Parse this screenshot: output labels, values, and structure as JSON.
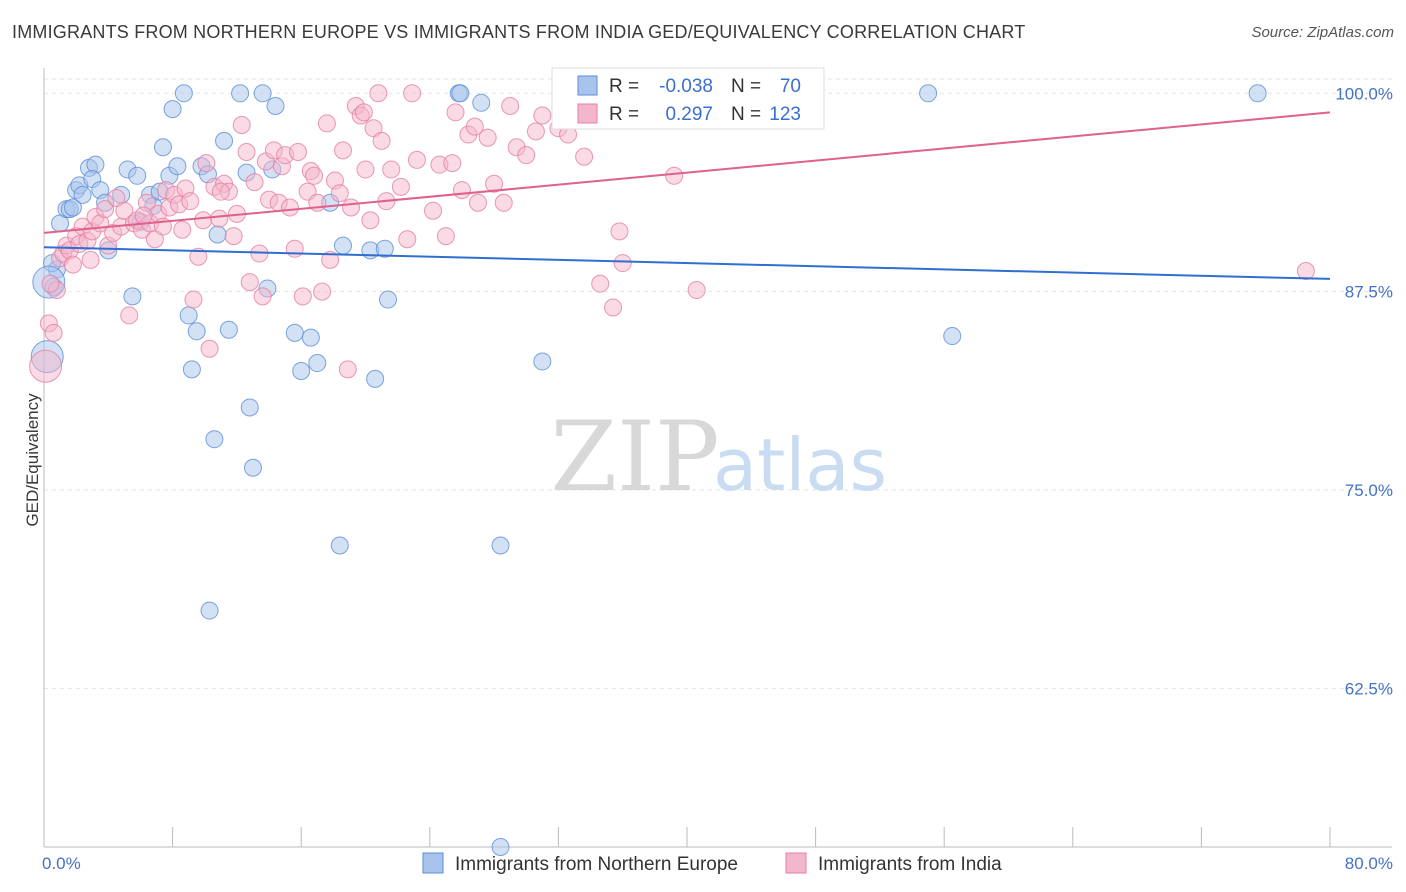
{
  "title": "IMMIGRANTS FROM NORTHERN EUROPE VS IMMIGRANTS FROM INDIA GED/EQUIVALENCY CORRELATION CHART",
  "source": "Source: ZipAtlas.com",
  "watermark": {
    "zip": "ZIP",
    "atlas": "atlas"
  },
  "chart_data": {
    "type": "scatter",
    "xlabel": "",
    "ylabel": "GED/Equivalency",
    "xlim": [
      0,
      80
    ],
    "ylim": [
      52.5,
      100.9
    ],
    "x_tick_labels": [
      "0.0%",
      "80.0%"
    ],
    "y_ticks": [
      62.5,
      75.0,
      87.5,
      100.0
    ],
    "y_tick_labels": [
      "62.5%",
      "75.0%",
      "87.5%",
      "100.0%"
    ],
    "grid": true,
    "legend": {
      "placement": "top-center",
      "rows": [
        {
          "r_label": "R =",
          "r_value": "-0.038",
          "n_label": "N =",
          "n_value": "70"
        },
        {
          "r_label": "R =",
          "r_value": "0.297",
          "n_label": "N =",
          "n_value": "123"
        }
      ]
    },
    "series": [
      {
        "name": "Immigrants from Northern Europe",
        "color": "#a8c4ec",
        "stroke": "#5b8fd6",
        "line_color": "#2f6fd0",
        "trend": {
          "x": [
            0,
            80
          ],
          "y": [
            90.3,
            88.3
          ]
        },
        "points": [
          [
            0.2,
            83.4
          ],
          [
            0.6,
            87.8
          ],
          [
            0.8,
            88.9
          ],
          [
            1.0,
            91.8
          ],
          [
            1.4,
            92.7
          ],
          [
            1.6,
            92.7
          ],
          [
            1.8,
            92.8
          ],
          [
            2.0,
            93.9
          ],
          [
            2.2,
            94.2
          ],
          [
            2.4,
            93.6
          ],
          [
            2.8,
            95.3
          ],
          [
            3.2,
            95.5
          ],
          [
            3.0,
            94.6
          ],
          [
            3.5,
            93.9
          ],
          [
            3.8,
            93.1
          ],
          [
            4.0,
            90.1
          ],
          [
            4.8,
            93.6
          ],
          [
            5.2,
            95.2
          ],
          [
            5.5,
            87.2
          ],
          [
            5.8,
            94.8
          ],
          [
            6.0,
            91.9
          ],
          [
            6.6,
            93.6
          ],
          [
            6.8,
            92.9
          ],
          [
            7.2,
            93.8
          ],
          [
            7.4,
            96.6
          ],
          [
            7.8,
            94.8
          ],
          [
            8.0,
            99.0
          ],
          [
            8.3,
            95.4
          ],
          [
            8.7,
            100.0
          ],
          [
            9.0,
            86.0
          ],
          [
            9.2,
            82.6
          ],
          [
            9.5,
            85.0
          ],
          [
            9.8,
            95.4
          ],
          [
            10.2,
            94.9
          ],
          [
            10.3,
            67.4
          ],
          [
            10.6,
            78.2
          ],
          [
            10.8,
            91.1
          ],
          [
            11.2,
            97.0
          ],
          [
            11.5,
            85.1
          ],
          [
            12.2,
            100.0
          ],
          [
            12.6,
            95.0
          ],
          [
            12.8,
            80.2
          ],
          [
            13.0,
            76.4
          ],
          [
            13.6,
            100.0
          ],
          [
            13.9,
            87.7
          ],
          [
            14.2,
            95.2
          ],
          [
            14.4,
            99.2
          ],
          [
            15.6,
            84.9
          ],
          [
            16.0,
            82.5
          ],
          [
            16.6,
            84.6
          ],
          [
            17.0,
            83.0
          ],
          [
            17.8,
            93.1
          ],
          [
            18.4,
            71.5
          ],
          [
            18.6,
            90.4
          ],
          [
            20.3,
            90.1
          ],
          [
            20.6,
            82.0
          ],
          [
            21.2,
            90.2
          ],
          [
            21.4,
            87.0
          ],
          [
            25.8,
            100.0
          ],
          [
            25.9,
            100.0
          ],
          [
            27.2,
            99.4
          ],
          [
            28.4,
            71.5
          ],
          [
            28.4,
            52.5
          ],
          [
            31.0,
            83.1
          ],
          [
            33.0,
            100.0
          ],
          [
            55.0,
            100.0
          ],
          [
            56.5,
            84.7
          ],
          [
            75.5,
            100.0
          ],
          [
            0.5,
            89.3
          ],
          [
            0.3,
            88.1
          ]
        ]
      },
      {
        "name": "Immigrants from India",
        "color": "#f4b6cc",
        "stroke": "#e57fa3",
        "line_color": "#e0608e",
        "trend": {
          "x": [
            0,
            80
          ],
          "y": [
            91.2,
            98.8
          ]
        },
        "points": [
          [
            0.1,
            82.8
          ],
          [
            0.3,
            85.5
          ],
          [
            0.6,
            84.9
          ],
          [
            0.8,
            87.6
          ],
          [
            1.0,
            89.6
          ],
          [
            1.2,
            89.9
          ],
          [
            1.4,
            90.4
          ],
          [
            1.6,
            90.1
          ],
          [
            1.8,
            89.2
          ],
          [
            2.0,
            91.0
          ],
          [
            2.2,
            90.5
          ],
          [
            2.4,
            91.6
          ],
          [
            2.7,
            90.7
          ],
          [
            3.0,
            91.3
          ],
          [
            3.2,
            92.2
          ],
          [
            3.5,
            91.8
          ],
          [
            3.8,
            92.7
          ],
          [
            4.0,
            90.4
          ],
          [
            4.3,
            91.2
          ],
          [
            4.5,
            93.4
          ],
          [
            4.8,
            91.6
          ],
          [
            5.0,
            92.6
          ],
          [
            5.3,
            86.0
          ],
          [
            5.6,
            91.8
          ],
          [
            5.8,
            92.0
          ],
          [
            6.1,
            91.4
          ],
          [
            6.4,
            93.1
          ],
          [
            6.6,
            91.8
          ],
          [
            6.9,
            90.8
          ],
          [
            7.1,
            92.4
          ],
          [
            7.4,
            91.6
          ],
          [
            7.6,
            93.9
          ],
          [
            7.8,
            92.8
          ],
          [
            8.1,
            93.6
          ],
          [
            8.4,
            93.0
          ],
          [
            8.6,
            91.4
          ],
          [
            8.8,
            94.0
          ],
          [
            9.1,
            93.2
          ],
          [
            9.3,
            87.0
          ],
          [
            9.6,
            89.7
          ],
          [
            9.9,
            92.0
          ],
          [
            10.1,
            95.6
          ],
          [
            10.3,
            83.9
          ],
          [
            10.6,
            94.1
          ],
          [
            10.9,
            92.1
          ],
          [
            11.2,
            94.3
          ],
          [
            11.5,
            93.8
          ],
          [
            11.8,
            91.0
          ],
          [
            12.0,
            92.4
          ],
          [
            12.3,
            98.0
          ],
          [
            12.6,
            96.3
          ],
          [
            12.8,
            88.1
          ],
          [
            13.1,
            94.4
          ],
          [
            13.4,
            89.9
          ],
          [
            13.6,
            87.2
          ],
          [
            13.8,
            95.7
          ],
          [
            14.0,
            93.3
          ],
          [
            14.3,
            96.4
          ],
          [
            14.6,
            93.1
          ],
          [
            14.8,
            95.4
          ],
          [
            15.0,
            96.1
          ],
          [
            15.3,
            92.8
          ],
          [
            15.6,
            90.2
          ],
          [
            15.8,
            96.3
          ],
          [
            16.1,
            87.2
          ],
          [
            16.4,
            93.8
          ],
          [
            16.6,
            95.1
          ],
          [
            16.8,
            94.8
          ],
          [
            17.0,
            93.1
          ],
          [
            17.3,
            87.5
          ],
          [
            17.6,
            98.1
          ],
          [
            17.8,
            89.5
          ],
          [
            18.1,
            94.5
          ],
          [
            18.4,
            93.7
          ],
          [
            18.6,
            96.4
          ],
          [
            18.9,
            82.6
          ],
          [
            19.1,
            92.8
          ],
          [
            19.4,
            99.2
          ],
          [
            19.7,
            98.6
          ],
          [
            20.0,
            95.2
          ],
          [
            20.3,
            92.0
          ],
          [
            20.5,
            97.8
          ],
          [
            20.8,
            100.0
          ],
          [
            21.0,
            97.0
          ],
          [
            21.3,
            93.2
          ],
          [
            21.6,
            95.2
          ],
          [
            22.2,
            94.1
          ],
          [
            22.6,
            90.8
          ],
          [
            23.2,
            95.8
          ],
          [
            24.2,
            92.6
          ],
          [
            24.6,
            95.5
          ],
          [
            25.0,
            91.0
          ],
          [
            25.4,
            95.6
          ],
          [
            25.6,
            98.8
          ],
          [
            26.0,
            93.9
          ],
          [
            26.4,
            97.4
          ],
          [
            27.0,
            93.1
          ],
          [
            27.6,
            97.2
          ],
          [
            28.0,
            94.3
          ],
          [
            28.6,
            93.1
          ],
          [
            29.0,
            99.2
          ],
          [
            29.4,
            96.6
          ],
          [
            30.0,
            96.1
          ],
          [
            30.6,
            97.6
          ],
          [
            31.0,
            98.6
          ],
          [
            32.0,
            97.8
          ],
          [
            32.6,
            97.4
          ],
          [
            33.6,
            96.0
          ],
          [
            34.6,
            88.0
          ],
          [
            35.4,
            86.5
          ],
          [
            35.8,
            91.3
          ],
          [
            36.0,
            89.3
          ],
          [
            39.2,
            94.8
          ],
          [
            40.6,
            87.6
          ],
          [
            78.5,
            88.8
          ],
          [
            0.4,
            88.0
          ],
          [
            2.9,
            89.5
          ],
          [
            6.2,
            92.3
          ],
          [
            11.0,
            93.8
          ],
          [
            19.9,
            98.8
          ],
          [
            22.9,
            100.0
          ],
          [
            26.8,
            97.9
          ],
          [
            33.0,
            100.0
          ]
        ]
      }
    ]
  }
}
